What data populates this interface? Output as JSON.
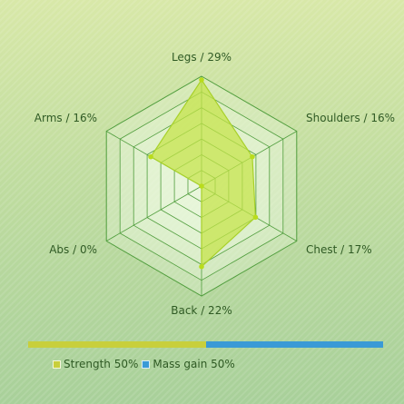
{
  "chart_data": {
    "type": "radar",
    "scale": {
      "min": 0,
      "max": 30,
      "rings": 7
    },
    "series": [
      {
        "axes": [
          "Legs",
          "Shoulders",
          "Chest",
          "Back",
          "Abs",
          "Arms"
        ],
        "values": [
          29,
          16,
          17,
          22,
          0,
          16
        ],
        "labels": [
          "Legs / 29%",
          "Shoulders / 16%",
          "Chest / 17%",
          "Back / 22%",
          "Abs / 0%",
          "Arms / 16%"
        ]
      }
    ],
    "split": [
      {
        "name": "Strength",
        "value": 50,
        "label": "Strength 50%",
        "color": "#c8cf3c"
      },
      {
        "name": "Mass gain",
        "value": 50,
        "label": "Mass gain 50%",
        "color": "#3a9ad6"
      }
    ],
    "colors": {
      "grid": "#4f9d3c",
      "fill": "#c5e346",
      "line": "#a8d12a",
      "point": "#b9dc1c"
    }
  }
}
